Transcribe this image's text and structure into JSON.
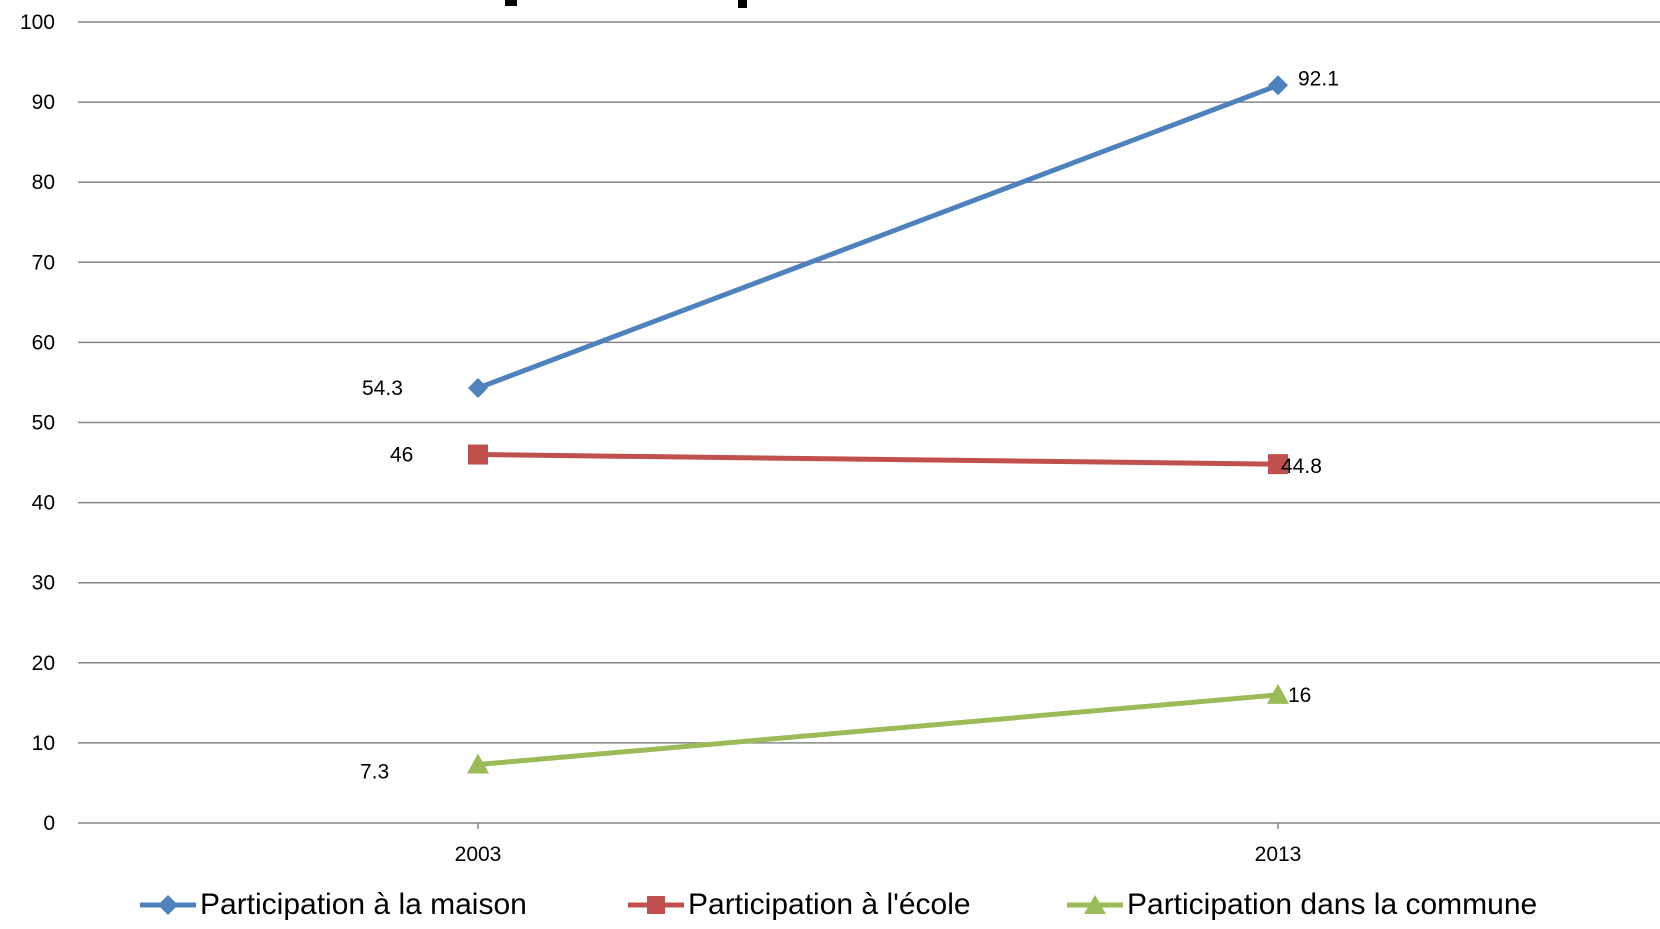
{
  "chart_data": {
    "type": "line",
    "title": "",
    "xlabel": "",
    "ylabel": "",
    "categories": [
      "2003",
      "2013"
    ],
    "ylim": [
      0,
      100
    ],
    "yticks": [
      0,
      10,
      20,
      30,
      40,
      50,
      60,
      70,
      80,
      90,
      100
    ],
    "grid": true,
    "legend_position": "bottom",
    "series": [
      {
        "name": "Participation à la maison",
        "values": [
          54.3,
          92.1
        ],
        "labels": [
          "54.3",
          "92.1"
        ],
        "color": "#4F81BD",
        "marker": "diamond"
      },
      {
        "name": "Participation à l'école",
        "values": [
          46,
          44.8
        ],
        "labels": [
          "46",
          "44.8"
        ],
        "color": "#C0504D",
        "marker": "square"
      },
      {
        "name": "Participation dans la commune",
        "values": [
          7.3,
          16
        ],
        "labels": [
          "7.3",
          "16"
        ],
        "color": "#9BBB59",
        "marker": "triangle"
      }
    ]
  }
}
